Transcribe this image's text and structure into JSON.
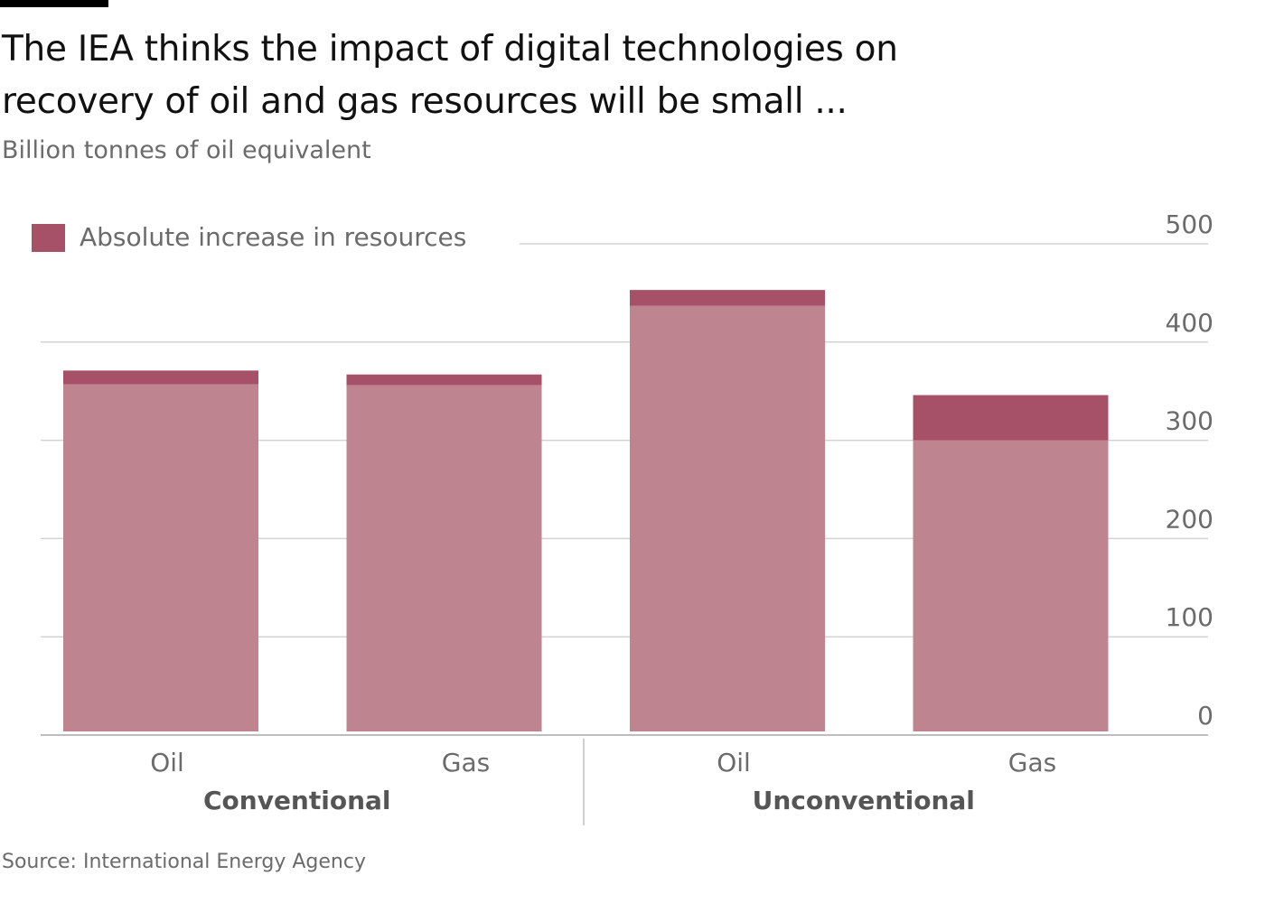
{
  "title": "The IEA thinks the impact of digital technologies on recovery of oil and gas resources will be small ...",
  "subtitle": "Billion tonnes of oil equivalent",
  "source": "Source: International Energy Agency",
  "colors": {
    "base": "#be8590",
    "increase": "#a65168",
    "grid": "#d3d3d3",
    "axis_text": "#6b6b6b",
    "group_text": "#555555"
  },
  "chart_data": {
    "type": "bar",
    "stacked": true,
    "categories": [
      "Oil",
      "Gas",
      "Oil",
      "Gas"
    ],
    "groups": [
      {
        "label": "Conventional",
        "categories": [
          0,
          1
        ]
      },
      {
        "label": "Unconventional",
        "categories": [
          2,
          3
        ]
      }
    ],
    "series": [
      {
        "name": "",
        "values": [
          357,
          356,
          437,
          300
        ]
      },
      {
        "name": "Absolute increase in resources",
        "values": [
          14,
          11,
          16,
          46
        ]
      }
    ],
    "ylim": [
      0,
      500
    ],
    "yticks": [
      0,
      100,
      200,
      300,
      400,
      500
    ],
    "grid": true,
    "y_axis_side": "right",
    "legend": {
      "position": "top-left",
      "entries": [
        "Absolute increase in resources"
      ]
    }
  }
}
